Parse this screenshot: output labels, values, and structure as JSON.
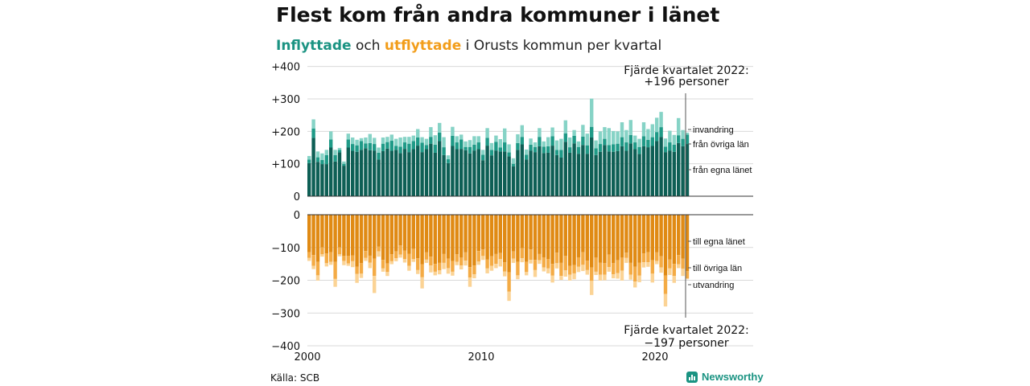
{
  "title": "Flest kom från andra kommuner i länet",
  "subtitle": {
    "in_word": "Inflyttade",
    "and_word": " och ",
    "out_word": "utflyttade",
    "rest": " i Orusts kommun per kvartal"
  },
  "source": "Källa: SCB",
  "brand": "Newsworthy",
  "colors": {
    "in_own": "#0e5f55",
    "in_other": "#1f9a87",
    "in_abroad": "#86d3c6",
    "out_own": "#e08a14",
    "out_other": "#f4ab45",
    "out_abroad": "#fbd395",
    "grid": "#d9d9d9",
    "axis": "#333333"
  },
  "chart_data": {
    "type": "bar",
    "stacked": true,
    "x_start": "2000 Q1",
    "x_ticks": [
      "2000",
      "2010",
      "2020"
    ],
    "y_top_ticks": [
      "+400",
      "+300",
      "+200",
      "+100",
      "0"
    ],
    "y_bottom_ticks": [
      "0",
      "−100",
      "−200",
      "−300",
      "−400"
    ],
    "ylim_top": [
      0,
      400
    ],
    "ylim_bottom": [
      -400,
      0
    ],
    "series_in": [
      {
        "name": "från egna länet",
        "values": [
          102,
          180,
          106,
          99,
          99,
          150,
          107,
          135,
          94,
          150,
          140,
          137,
          143,
          148,
          142,
          141,
          113,
          139,
          147,
          140,
          143,
          133,
          146,
          136,
          145,
          156,
          136,
          145,
          162,
          134,
          170,
          127,
          102,
          155,
          145,
          146,
          142,
          132,
          141,
          145,
          111,
          156,
          126,
          141,
          138,
          138,
          123,
          92,
          143,
          160,
          113,
          141,
          136,
          154,
          133,
          134,
          156,
          127,
          119,
          168,
          134,
          163,
          131,
          158,
          131,
          181,
          127,
          137,
          158,
          138,
          137,
          139,
          154,
          140,
          163,
          145,
          130,
          154,
          151,
          155,
          170,
          183,
          136,
          141,
          137,
          164,
          154,
          161
        ]
      },
      {
        "name": "från övriga län",
        "values": [
          11,
          29,
          14,
          13,
          28,
          25,
          20,
          8,
          6,
          25,
          21,
          20,
          27,
          15,
          22,
          20,
          21,
          23,
          20,
          31,
          12,
          20,
          20,
          26,
          25,
          25,
          29,
          13,
          21,
          25,
          26,
          24,
          12,
          31,
          21,
          29,
          10,
          20,
          18,
          21,
          17,
          24,
          17,
          27,
          12,
          28,
          12,
          8,
          21,
          23,
          15,
          18,
          16,
          29,
          20,
          20,
          29,
          16,
          24,
          26,
          17,
          23,
          21,
          26,
          26,
          33,
          21,
          24,
          19,
          20,
          23,
          23,
          28,
          26,
          26,
          21,
          22,
          31,
          23,
          27,
          28,
          30,
          17,
          25,
          22,
          24,
          23,
          29
        ]
      },
      {
        "name": "invandring",
        "values": [
          11,
          28,
          18,
          20,
          16,
          25,
          16,
          6,
          7,
          18,
          20,
          17,
          9,
          18,
          28,
          19,
          16,
          19,
          16,
          19,
          22,
          28,
          17,
          21,
          17,
          26,
          17,
          19,
          30,
          29,
          30,
          31,
          12,
          28,
          19,
          15,
          17,
          21,
          26,
          19,
          15,
          30,
          21,
          19,
          26,
          43,
          25,
          17,
          27,
          36,
          16,
          19,
          14,
          27,
          16,
          28,
          27,
          29,
          34,
          40,
          30,
          18,
          17,
          36,
          36,
          87,
          24,
          39,
          36,
          52,
          41,
          38,
          46,
          38,
          46,
          21,
          25,
          43,
          33,
          40,
          44,
          47,
          25,
          36,
          30,
          53,
          27,
          6
        ]
      }
    ],
    "series_out": [
      {
        "name": "till egna länet",
        "values": [
          -114,
          -123,
          -144,
          -100,
          -118,
          -114,
          -144,
          -100,
          -126,
          -126,
          -124,
          -159,
          -148,
          -111,
          -125,
          -134,
          -97,
          -138,
          -149,
          -121,
          -112,
          -94,
          -110,
          -119,
          -104,
          -133,
          -151,
          -115,
          -128,
          -150,
          -147,
          -120,
          -134,
          -141,
          -121,
          -131,
          -115,
          -160,
          -155,
          -111,
          -106,
          -137,
          -127,
          -120,
          -117,
          -145,
          -176,
          -112,
          -144,
          -102,
          -144,
          -106,
          -138,
          -120,
          -130,
          -135,
          -150,
          -116,
          -147,
          -126,
          -156,
          -154,
          -130,
          -114,
          -140,
          -161,
          -131,
          -146,
          -148,
          -122,
          -148,
          -139,
          -131,
          -116,
          -147,
          -159,
          -146,
          -118,
          -114,
          -139,
          -115,
          -127,
          -186,
          -137,
          -150,
          -123,
          -134,
          -172
        ]
      },
      {
        "name": "till övriga län",
        "values": [
          -18,
          -33,
          -41,
          -21,
          -30,
          -30,
          -52,
          -21,
          -15,
          -23,
          -18,
          -22,
          -32,
          -21,
          -21,
          -53,
          -15,
          -26,
          -26,
          -21,
          -21,
          -28,
          -25,
          -37,
          -31,
          -36,
          -40,
          -22,
          -27,
          -24,
          -23,
          -27,
          -29,
          -33,
          -23,
          -24,
          -25,
          -32,
          -27,
          -32,
          -20,
          -27,
          -29,
          -30,
          -18,
          -28,
          -59,
          -22,
          -41,
          -31,
          -31,
          -32,
          -31,
          -19,
          -31,
          -29,
          -36,
          -32,
          -40,
          -44,
          -27,
          -25,
          -29,
          -39,
          -29,
          -41,
          -43,
          -37,
          -35,
          -38,
          -34,
          -39,
          -40,
          -16,
          -36,
          -45,
          -40,
          -27,
          -31,
          -41,
          -26,
          -34,
          -56,
          -27,
          -37,
          -28,
          -31,
          -22
        ]
      },
      {
        "name": "utvandring",
        "values": [
          -9,
          -10,
          -16,
          -7,
          -10,
          -9,
          -24,
          -6,
          -13,
          -7,
          -18,
          -27,
          -13,
          -9,
          -17,
          -52,
          -16,
          -10,
          -12,
          -9,
          -9,
          -9,
          -11,
          -15,
          -9,
          -12,
          -34,
          -10,
          -21,
          -11,
          -12,
          -19,
          -17,
          -12,
          -10,
          -12,
          -15,
          -28,
          -12,
          -10,
          -12,
          -15,
          -15,
          -13,
          -23,
          -15,
          -28,
          -13,
          -12,
          -12,
          -10,
          -11,
          -21,
          -11,
          -12,
          -15,
          -21,
          -16,
          -12,
          -19,
          -18,
          -18,
          -16,
          -19,
          -14,
          -43,
          -10,
          -18,
          -17,
          -14,
          -12,
          -17,
          -30,
          -15,
          -15,
          -18,
          -20,
          -16,
          -14,
          -27,
          -10,
          -16,
          -38,
          -20,
          -21,
          -12,
          -22,
          -3
        ]
      }
    ],
    "annotation_top": [
      "Fjärde kvartalet 2022:",
      "+196 personer"
    ],
    "annotation_bottom": [
      "Fjärde kvartalet 2022:",
      "−197 personer"
    ],
    "legend_top": [
      "invandring",
      "från övriga län",
      "från egna länet"
    ],
    "legend_bottom": [
      "till egna länet",
      "till övriga län",
      "utvandring"
    ]
  }
}
